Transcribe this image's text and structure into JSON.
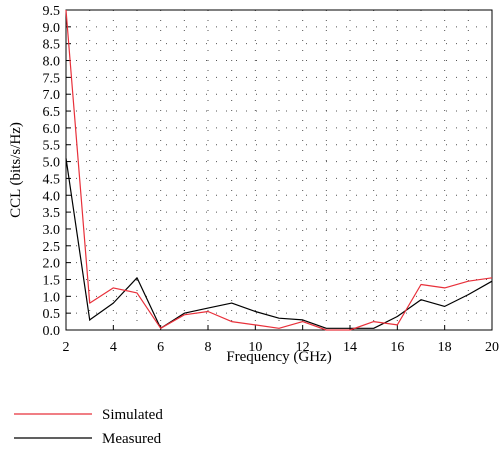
{
  "chart_data": {
    "type": "line",
    "xlabel": "Frequency (GHz)",
    "ylabel": "CCL (bits/s/Hz)",
    "xlim": [
      2,
      20
    ],
    "ylim": [
      0,
      9.5
    ],
    "x_ticks": [
      2,
      4,
      6,
      8,
      10,
      12,
      14,
      16,
      18,
      20
    ],
    "y_ticks": [
      0.0,
      0.5,
      1.0,
      1.5,
      2.0,
      2.5,
      3.0,
      3.5,
      4.0,
      4.5,
      5.0,
      5.5,
      6.0,
      6.5,
      7.0,
      7.5,
      8.0,
      8.5,
      9.0,
      9.5
    ],
    "grid": "dotted",
    "legend_position": "bottom-left",
    "series": [
      {
        "name": "Simulated",
        "color": "#e8303a",
        "x": [
          2,
          3,
          4,
          5,
          6,
          7,
          8,
          9,
          10,
          11,
          12,
          13,
          14,
          15,
          16,
          17,
          18,
          19,
          20
        ],
        "values": [
          9.5,
          0.8,
          1.25,
          1.1,
          0.05,
          0.45,
          0.55,
          0.25,
          0.15,
          0.05,
          0.25,
          0.0,
          0.0,
          0.25,
          0.15,
          1.35,
          1.25,
          1.45,
          1.55
        ]
      },
      {
        "name": "Measured",
        "color": "#000000",
        "x": [
          2,
          3,
          4,
          5,
          6,
          7,
          8,
          9,
          10,
          11,
          12,
          13,
          14,
          15,
          16,
          17,
          18,
          19,
          20
        ],
        "values": [
          5.1,
          0.3,
          0.8,
          1.55,
          0.05,
          0.5,
          0.65,
          0.8,
          0.55,
          0.35,
          0.3,
          0.05,
          0.05,
          0.05,
          0.4,
          0.9,
          0.7,
          1.05,
          1.45
        ]
      }
    ]
  }
}
